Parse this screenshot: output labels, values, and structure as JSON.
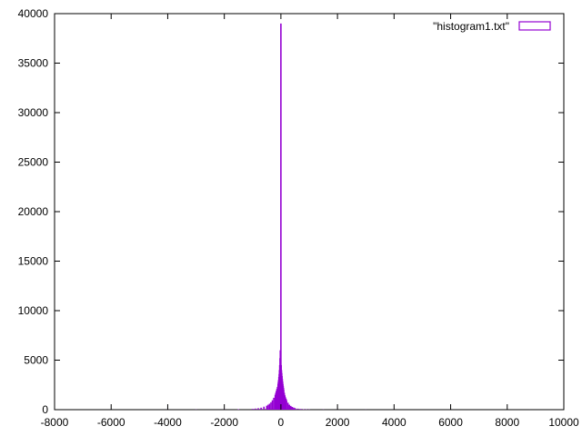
{
  "chart_data": {
    "type": "bar",
    "title": "",
    "xlabel": "",
    "ylabel": "",
    "xlim": [
      -8000,
      10000
    ],
    "ylim": [
      0,
      40000
    ],
    "x_ticks": [
      -8000,
      -6000,
      -4000,
      -2000,
      0,
      2000,
      4000,
      6000,
      8000,
      10000
    ],
    "y_ticks": [
      0,
      5000,
      10000,
      15000,
      20000,
      25000,
      30000,
      35000,
      40000
    ],
    "x_tick_labels": [
      "-8000",
      "-6000",
      "-4000",
      "-2000",
      "0",
      "2000",
      "4000",
      "6000",
      "8000",
      "10000"
    ],
    "y_tick_labels": [
      "0",
      "5000",
      "10000",
      "15000",
      "20000",
      "25000",
      "30000",
      "35000",
      "40000"
    ],
    "grid": false,
    "legend_position": "top-right",
    "series": [
      {
        "name": "\"histogram1.txt\"",
        "color": "#9400d3",
        "x": [
          -8000,
          -6000,
          -4000,
          -3000,
          -2000,
          -1500,
          -1000,
          -900,
          -800,
          -700,
          -600,
          -500,
          -450,
          -400,
          -350,
          -300,
          -250,
          -200,
          -180,
          -160,
          -140,
          -120,
          -100,
          -90,
          -80,
          -70,
          -60,
          -50,
          -40,
          -30,
          -20,
          -10,
          0,
          10,
          20,
          30,
          40,
          50,
          60,
          70,
          80,
          90,
          100,
          120,
          140,
          160,
          180,
          200,
          250,
          300,
          350,
          400,
          450,
          500,
          600,
          700,
          800,
          900,
          1000,
          1500,
          2000,
          3000,
          4000,
          6000,
          8000,
          8800
        ],
        "values": [
          5,
          5,
          10,
          15,
          25,
          40,
          80,
          110,
          150,
          200,
          300,
          400,
          500,
          600,
          750,
          950,
          1200,
          1500,
          1700,
          1900,
          2100,
          2300,
          2600,
          2800,
          3000,
          3300,
          3600,
          4000,
          4500,
          5200,
          6000,
          4700,
          39000,
          4500,
          4000,
          3700,
          3400,
          3100,
          2850,
          2600,
          2400,
          2200,
          2000,
          1700,
          1450,
          1250,
          1100,
          950,
          700,
          500,
          380,
          280,
          210,
          160,
          100,
          70,
          50,
          35,
          25,
          15,
          10,
          8,
          6,
          5,
          4,
          3
        ]
      }
    ]
  }
}
